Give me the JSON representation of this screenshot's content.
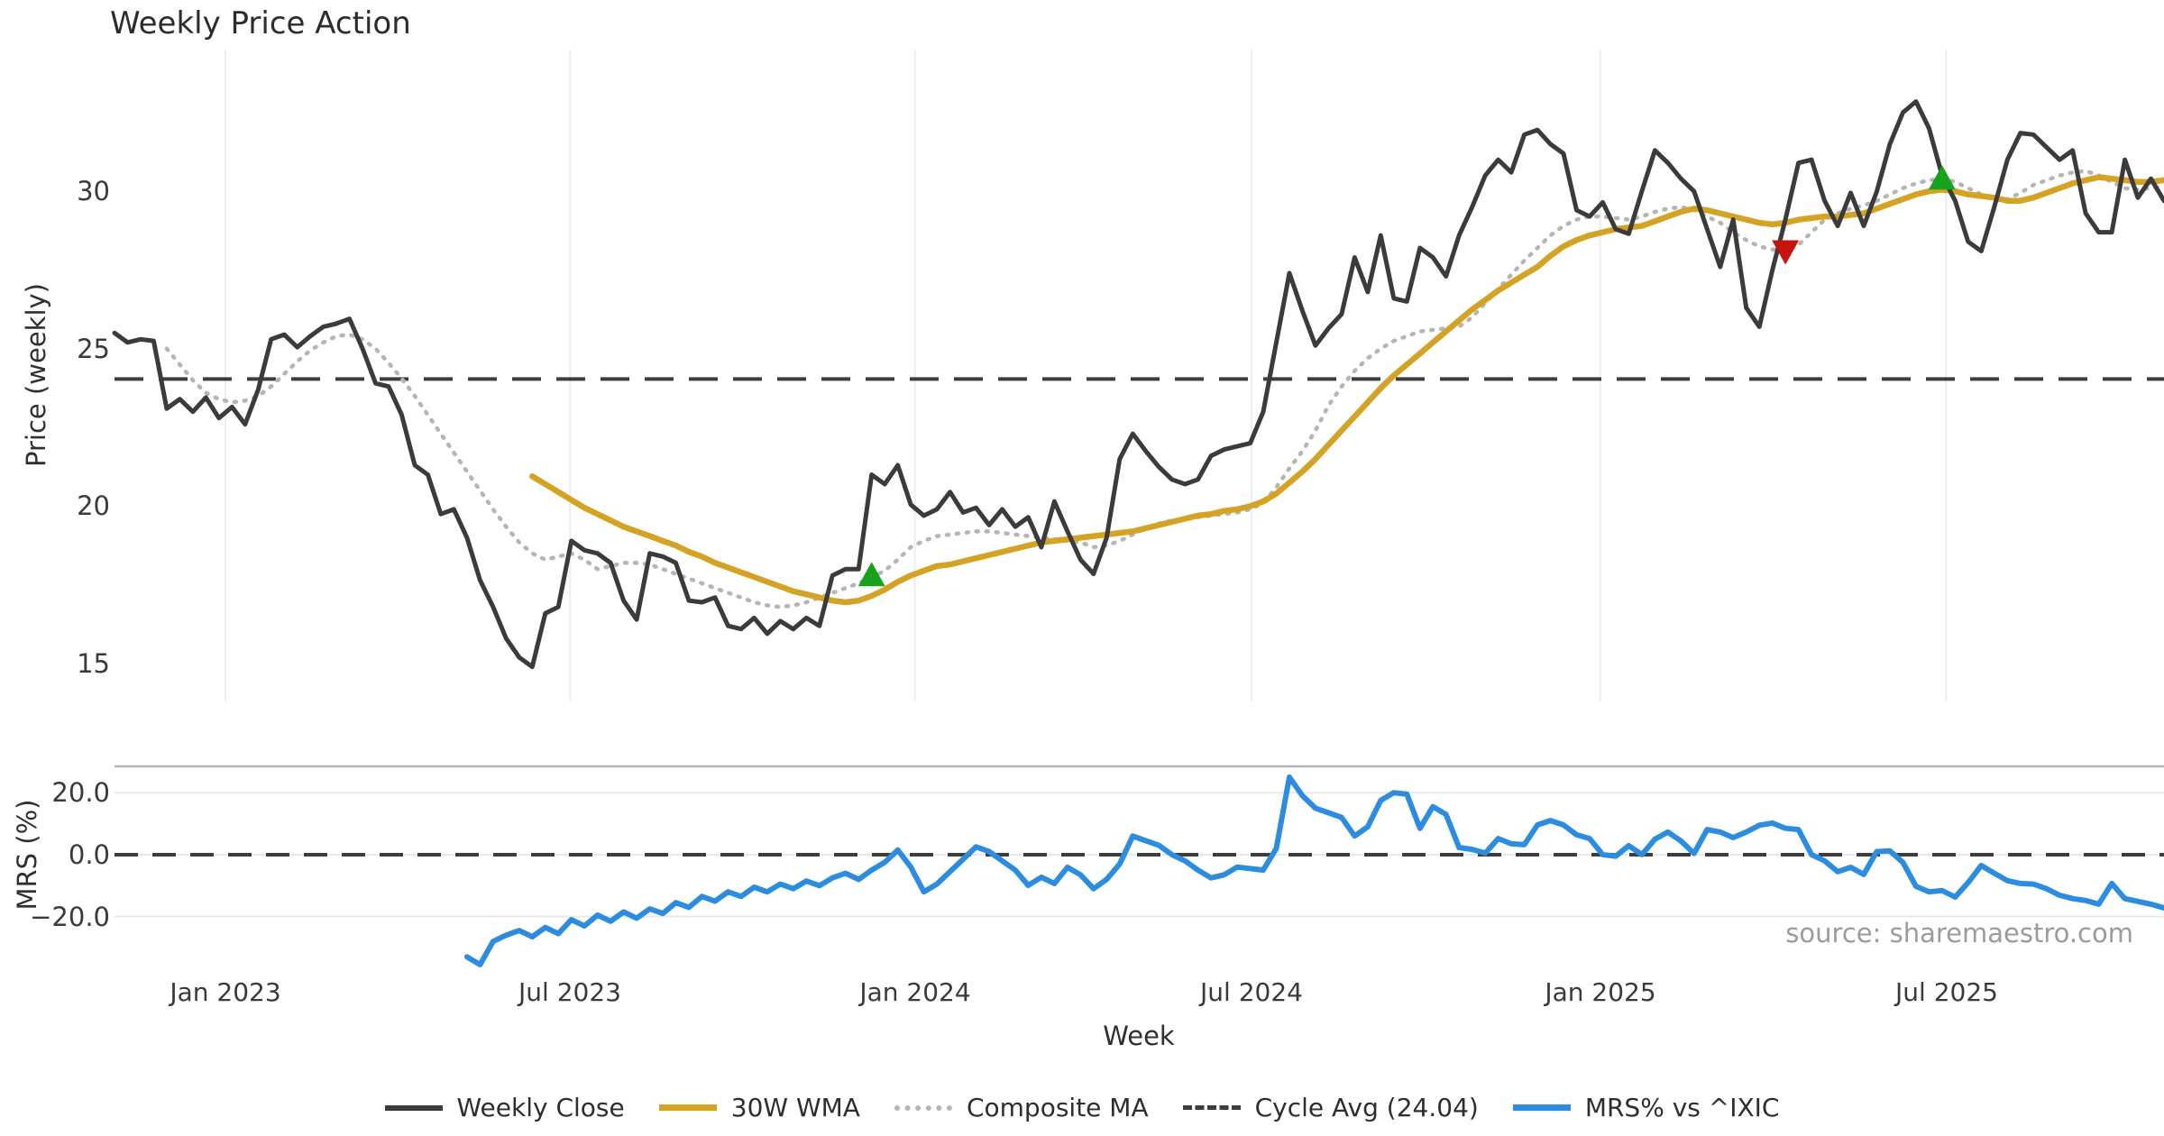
{
  "title": "Weekly Price Action",
  "source_note": "source: sharemaestro.com",
  "axes": {
    "price_axis_label": "Price (weekly)",
    "mrs_axis_label": "MRS (%)",
    "x_axis_label": "Week",
    "price_tick_labels": [
      "30",
      "25",
      "20",
      "15"
    ],
    "mrs_tick_labels": [
      "20.0",
      "0.0",
      "−20.0"
    ],
    "x_tick_labels": [
      "Jan 2023",
      "Jul 2023",
      "Jan 2024",
      "Jul 2024",
      "Jan 2025",
      "Jul 2025"
    ]
  },
  "legend": {
    "items": [
      {
        "label": "Weekly Close",
        "color": "#3b3b3b",
        "style": "solid"
      },
      {
        "label": "30W WMA",
        "color": "#d4a324",
        "style": "solid"
      },
      {
        "label": "Composite MA",
        "color": "#b5b5b5",
        "style": "dotted"
      },
      {
        "label": "Cycle Avg (24.04)",
        "color": "#3d3d3d",
        "style": "dashed"
      },
      {
        "label": "MRS% vs ^IXIC",
        "color": "#2b8ce0",
        "style": "solid"
      }
    ]
  },
  "colors": {
    "weekly_close": "#3b3b3b",
    "wma_30w": "#d4a324",
    "composite_ma": "#b5b5b5",
    "cycle_avg": "#3d3d3d",
    "mrs": "#2b8ce0",
    "buy_marker": "#16a21a",
    "sell_marker": "#c5130d",
    "vgrid": "#ededf1",
    "hgrid": "#e9e9ed",
    "panel_spine": "#b4b4bc"
  },
  "chart_data": {
    "type": "line",
    "x_unit": "weekly, Nov 2022 - Oct 2025",
    "x_tick_positions_weeks": [
      8.5,
      34.9,
      61.3,
      87.1,
      113.8,
      140.3
    ],
    "x_tick_labels": [
      "Jan 2023",
      "Jul 2023",
      "Jan 2024",
      "Jul 2024",
      "Jan 2025",
      "Jul 2025"
    ],
    "panels": [
      {
        "name": "price",
        "ylabel": "Price (weekly)",
        "ylim": [
          13.8,
          34.5
        ],
        "yticks": [
          30,
          25,
          20,
          15
        ],
        "cycle_avg": 24.04,
        "grid": "vertical",
        "series": [
          {
            "name": "Weekly Close",
            "color": "#3b3b3b",
            "style": "solid",
            "width": 5,
            "values": [
              25.5,
              25.2,
              25.3,
              25.25,
              23.1,
              23.4,
              23.0,
              23.45,
              22.8,
              23.15,
              22.6,
              23.7,
              25.3,
              25.45,
              25.05,
              25.4,
              25.7,
              25.8,
              25.95,
              25.0,
              23.9,
              23.8,
              22.9,
              21.3,
              21.0,
              19.75,
              19.9,
              19.0,
              17.65,
              16.8,
              15.8,
              15.2,
              14.9,
              16.6,
              16.8,
              18.9,
              18.6,
              18.5,
              18.2,
              17.0,
              16.4,
              18.5,
              18.4,
              18.2,
              17.0,
              16.95,
              17.1,
              16.2,
              16.1,
              16.45,
              15.95,
              16.35,
              16.1,
              16.45,
              16.2,
              17.8,
              18.0,
              18.0,
              21.0,
              20.7,
              21.3,
              20.05,
              19.7,
              19.9,
              20.45,
              19.8,
              19.95,
              19.4,
              19.9,
              19.35,
              19.65,
              18.7,
              20.15,
              19.2,
              18.3,
              17.85,
              19.0,
              21.5,
              22.3,
              21.75,
              21.25,
              20.85,
              20.7,
              20.85,
              21.6,
              21.8,
              21.9,
              22.0,
              23.0,
              25.2,
              27.4,
              26.2,
              25.1,
              25.65,
              26.1,
              27.9,
              26.8,
              28.6,
              26.6,
              26.5,
              28.2,
              27.9,
              27.3,
              28.6,
              29.5,
              30.5,
              31.0,
              30.6,
              31.8,
              31.95,
              31.5,
              31.2,
              29.4,
              29.2,
              29.65,
              28.8,
              28.65,
              30.0,
              31.3,
              30.9,
              30.4,
              30.0,
              28.8,
              27.6,
              29.1,
              26.3,
              25.7,
              27.5,
              29.1,
              30.9,
              31.0,
              29.7,
              28.9,
              29.95,
              28.9,
              30.0,
              31.5,
              32.5,
              32.85,
              32.0,
              30.5,
              29.7,
              28.4,
              28.1,
              29.5,
              31.0,
              31.85,
              31.8,
              31.4,
              31.0,
              31.3,
              29.3,
              28.7,
              28.7,
              31.0,
              29.8,
              30.4,
              29.7
            ]
          },
          {
            "name": "30W WMA",
            "color": "#d4a324",
            "style": "solid",
            "width": 6.5,
            "values": [
              null,
              null,
              null,
              null,
              null,
              null,
              null,
              null,
              null,
              null,
              null,
              null,
              null,
              null,
              null,
              null,
              null,
              null,
              null,
              null,
              null,
              null,
              null,
              null,
              null,
              null,
              null,
              null,
              null,
              null,
              null,
              null,
              20.95,
              20.7,
              20.45,
              20.2,
              19.95,
              19.75,
              19.55,
              19.35,
              19.2,
              19.05,
              18.9,
              18.75,
              18.55,
              18.4,
              18.2,
              18.05,
              17.9,
              17.75,
              17.6,
              17.45,
              17.3,
              17.2,
              17.1,
              17.0,
              16.95,
              17.0,
              17.15,
              17.35,
              17.6,
              17.8,
              17.95,
              18.1,
              18.15,
              18.25,
              18.35,
              18.45,
              18.55,
              18.65,
              18.75,
              18.85,
              18.9,
              18.95,
              19.0,
              19.05,
              19.1,
              19.15,
              19.2,
              19.3,
              19.4,
              19.5,
              19.6,
              19.7,
              19.75,
              19.85,
              19.9,
              20.0,
              20.15,
              20.4,
              20.75,
              21.1,
              21.5,
              21.95,
              22.4,
              22.85,
              23.3,
              23.75,
              24.15,
              24.5,
              24.85,
              25.2,
              25.55,
              25.9,
              26.25,
              26.55,
              26.85,
              27.1,
              27.35,
              27.6,
              27.95,
              28.25,
              28.45,
              28.6,
              28.7,
              28.8,
              28.85,
              28.9,
              29.05,
              29.2,
              29.35,
              29.45,
              29.4,
              29.3,
              29.2,
              29.1,
              29.0,
              28.95,
              29.0,
              29.1,
              29.15,
              29.2,
              29.2,
              29.25,
              29.3,
              29.45,
              29.6,
              29.75,
              29.9,
              30.0,
              30.05,
              30.0,
              29.9,
              29.85,
              29.8,
              29.7,
              29.7,
              29.8,
              29.95,
              30.1,
              30.25,
              30.35,
              30.45,
              30.4,
              30.35,
              30.3,
              30.3,
              30.35
            ]
          },
          {
            "name": "Composite MA",
            "color": "#b5b5b5",
            "style": "dotted",
            "width": 4.5,
            "values": [
              null,
              null,
              null,
              null,
              25.0,
              24.5,
              24.0,
              23.6,
              23.4,
              23.3,
              23.35,
              23.5,
              23.8,
              24.2,
              24.6,
              24.95,
              25.2,
              25.4,
              25.45,
              25.3,
              25.0,
              24.55,
              24.05,
              23.5,
              22.9,
              22.3,
              21.7,
              21.1,
              20.5,
              19.9,
              19.35,
              18.85,
              18.5,
              18.3,
              18.4,
              18.5,
              18.3,
              18.0,
              18.1,
              18.2,
              18.2,
              18.15,
              18.0,
              17.85,
              17.7,
              17.55,
              17.4,
              17.25,
              17.1,
              16.95,
              16.85,
              16.8,
              16.85,
              16.95,
              17.1,
              17.25,
              17.4,
              17.55,
              17.75,
              17.95,
              18.3,
              18.7,
              18.9,
              19.05,
              19.1,
              19.15,
              19.2,
              19.2,
              19.15,
              19.1,
              19.05,
              19.0,
              18.95,
              18.9,
              18.85,
              18.7,
              18.75,
              18.9,
              19.1,
              19.3,
              19.45,
              19.55,
              19.6,
              19.65,
              19.7,
              19.75,
              19.8,
              19.9,
              20.1,
              20.6,
              21.2,
              21.75,
              22.4,
              23.2,
              23.8,
              24.3,
              24.7,
              25.0,
              25.25,
              25.4,
              25.55,
              25.6,
              25.65,
              25.7,
              26.0,
              26.45,
              26.9,
              27.35,
              27.8,
              28.2,
              28.6,
              28.9,
              29.1,
              29.2,
              29.2,
              29.15,
              29.1,
              29.2,
              29.35,
              29.45,
              29.5,
              29.4,
              29.2,
              29.0,
              28.7,
              28.45,
              28.25,
              28.15,
              28.1,
              28.3,
              28.7,
              29.1,
              29.3,
              29.45,
              29.55,
              29.7,
              29.9,
              30.1,
              30.25,
              30.35,
              30.4,
              30.3,
              30.1,
              29.9,
              29.7,
              29.75,
              29.95,
              30.2,
              30.35,
              30.5,
              30.6,
              30.65,
              30.5,
              30.3,
              30.1,
              30.05,
              30.1,
              30.15
            ]
          }
        ],
        "markers": [
          {
            "type": "buy",
            "shape": "triangle-up",
            "color": "#16a21a",
            "week": 58,
            "value": 17.8,
            "date_approx": "Dec 2023"
          },
          {
            "type": "sell",
            "shape": "triangle-down",
            "color": "#c5130d",
            "week": 128,
            "value": 28.1,
            "date_approx": "Apr 2025"
          },
          {
            "type": "buy",
            "shape": "triangle-up",
            "color": "#16a21a",
            "week": 140,
            "value": 30.4,
            "date_approx": "Jul 2025"
          }
        ]
      },
      {
        "name": "mrs",
        "ylabel": "MRS (%)",
        "ylim": [
          -36.1,
          28.5
        ],
        "yticks": [
          20,
          0,
          -20
        ],
        "zero_line": 0,
        "grid": "horizontal",
        "series": [
          {
            "name": "MRS% vs ^IXIC",
            "color": "#2b8ce0",
            "style": "solid",
            "width": 6,
            "values": [
              null,
              null,
              null,
              null,
              null,
              null,
              null,
              null,
              null,
              null,
              null,
              null,
              null,
              null,
              null,
              null,
              null,
              null,
              null,
              null,
              null,
              null,
              null,
              null,
              null,
              null,
              null,
              -33,
              -35.5,
              -28,
              -26,
              -24.5,
              -26.5,
              -23.5,
              -25.5,
              -21,
              -23,
              -19.5,
              -21.5,
              -18.5,
              -20.5,
              -17.5,
              -19,
              -15.5,
              -17,
              -13.5,
              -15,
              -12,
              -13.5,
              -10.5,
              -12,
              -9.5,
              -11,
              -8.5,
              -10,
              -7.5,
              -6,
              -8,
              -5,
              -2.5,
              1.5,
              -4,
              -12,
              -9.5,
              -5.5,
              -1.5,
              2.5,
              1,
              -2,
              -5,
              -9.9,
              -7.3,
              -9.3,
              -4.1,
              -6.5,
              -11,
              -8,
              -3,
              6,
              4.5,
              3,
              0,
              -2,
              -5,
              -7.5,
              -6.5,
              -4,
              -4.5,
              -5,
              2,
              25,
              19,
              15,
              13.5,
              12,
              6,
              9,
              17.5,
              20,
              19.5,
              8.5,
              15.5,
              13,
              2.3,
              1.7,
              0.5,
              5.2,
              3.5,
              3.2,
              9.6,
              11,
              9.6,
              6.4,
              5.2,
              0,
              -0.5,
              2.9,
              0,
              5,
              7.3,
              4.4,
              0.4,
              8.1,
              7.3,
              5.5,
              7.3,
              9.5,
              10.2,
              8.5,
              8.1,
              0,
              -2,
              -5.5,
              -4.1,
              -6.4,
              1,
              1.2,
              -2.5,
              -10.2,
              -12,
              -11.6,
              -13.7,
              -9,
              -3.5,
              -6,
              -8.4,
              -9.3,
              -9.5,
              -11,
              -13.1,
              -14.2,
              -14.8,
              -16,
              -9.3,
              -14.2,
              -15.1,
              -16,
              -17.2
            ]
          }
        ]
      }
    ]
  }
}
